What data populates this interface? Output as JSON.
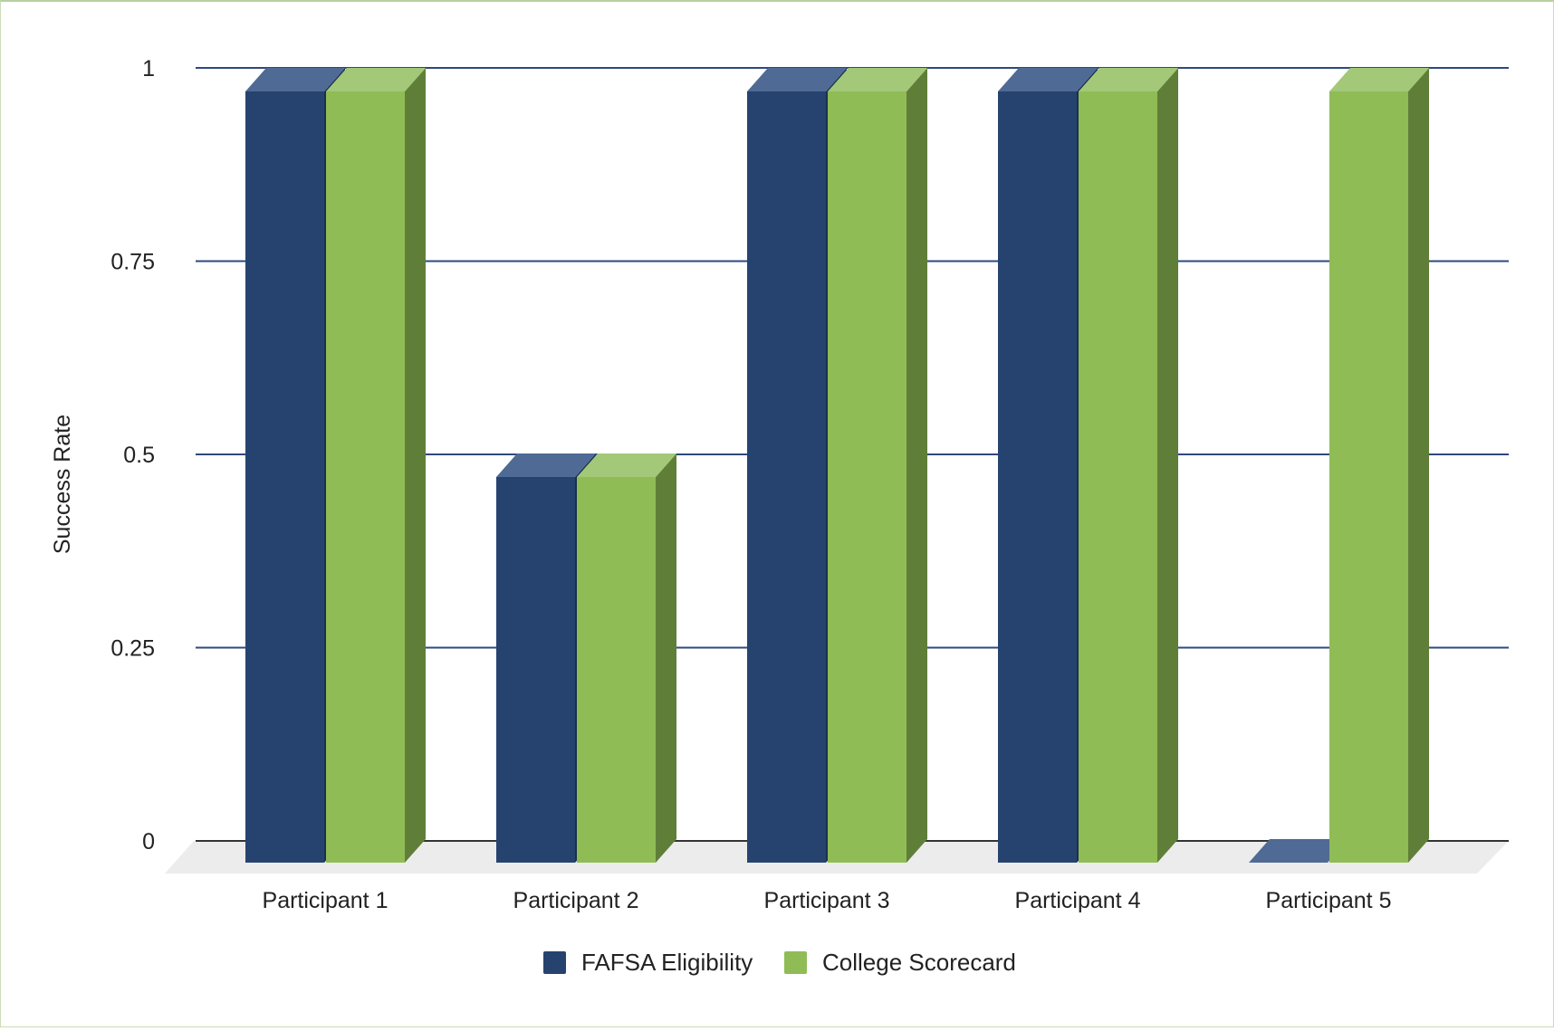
{
  "chart_data": {
    "type": "bar",
    "subtype": "3d-clustered-column",
    "title": "",
    "xlabel": "",
    "ylabel": "Success Rate",
    "ylim": [
      0,
      1
    ],
    "yticks": [
      0,
      0.25,
      0.5,
      0.75,
      1
    ],
    "ytick_labels": [
      "0",
      "0.25",
      "0.5",
      "0.75",
      "1"
    ],
    "categories": [
      "Participant 1",
      "Participant 2",
      "Participant 3",
      "Participant 4",
      "Participant 5"
    ],
    "series": [
      {
        "name": "FAFSA Eligibility",
        "values": [
          1,
          0.5,
          1,
          1,
          0
        ]
      },
      {
        "name": "College Scorecard",
        "values": [
          1,
          0.5,
          1,
          1,
          1
        ]
      }
    ],
    "legend": {
      "position": "bottom"
    },
    "grid": true,
    "colors": {
      "series": [
        {
          "front": "#264370",
          "top": "#4f6a94",
          "side": "#1a2f52"
        },
        {
          "front": "#8fbc55",
          "top": "#a3c878",
          "side": "#5f7f38"
        }
      ],
      "grid": "#2e4a7d",
      "floor": "#ececec",
      "axis": "#333333"
    }
  }
}
